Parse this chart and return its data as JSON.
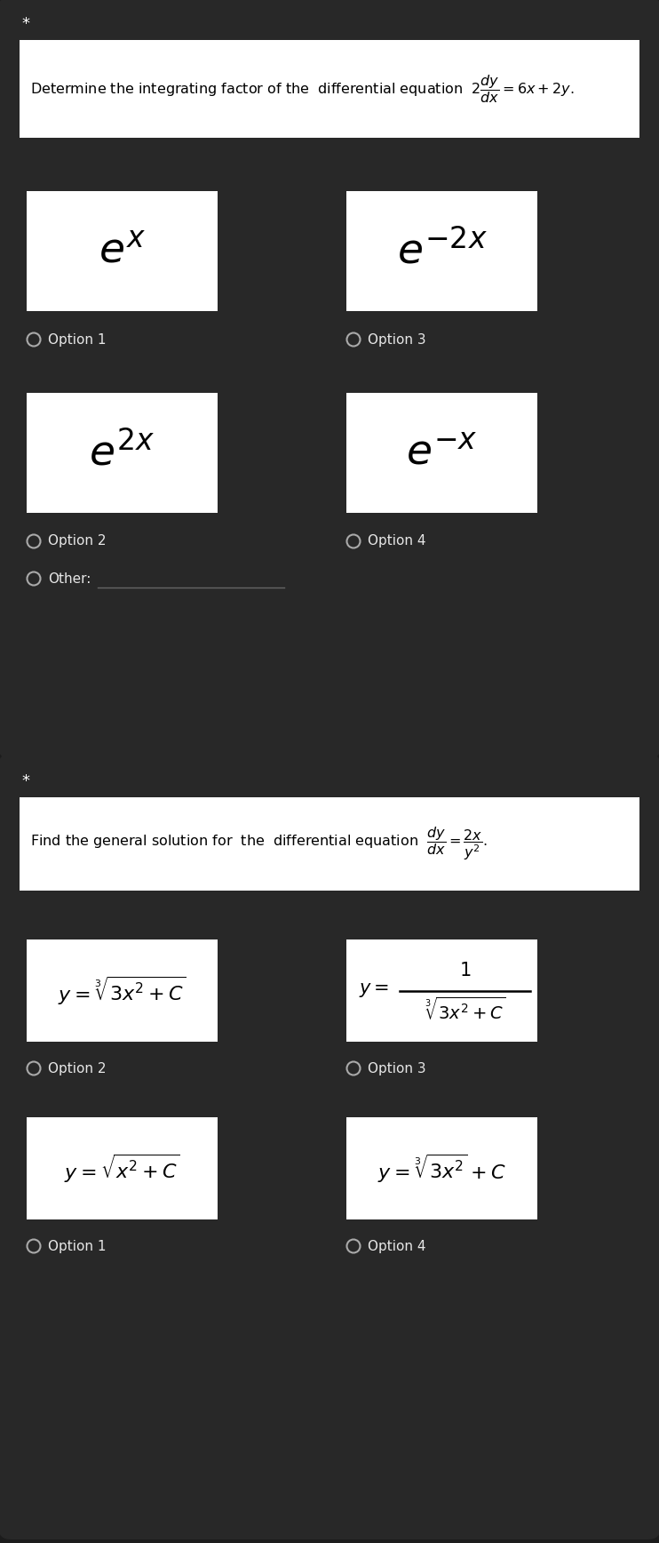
{
  "bg_color": "#1c1c1c",
  "card_bg": "#ffffff",
  "dark_section_bg": "#282828",
  "text_color_white": "#e8e8e8",
  "text_color_black": "#000000",
  "star_color": "#ffffff",
  "circle_color": "#aaaaaa",
  "line_color": "#666666",
  "q1_question": "Determine the integrating factor of the  differential equation  $2\\dfrac{dy}{dx}=6x+2y$.",
  "q1_opt1": "$e^{x}$",
  "q1_opt2": "$e^{2x}$",
  "q1_opt3": "$e^{-2x}$",
  "q1_opt4": "$e^{-x}$",
  "q2_question": "Find the general solution for  the  differential equation  $\\dfrac{dy}{dx}=\\dfrac{2x}{y^{2}}$.",
  "q2_opt2": "$y=\\sqrt[3]{3x^2+C}$",
  "q2_opt1": "$y=\\sqrt{x^2+C}$",
  "q2_opt4": "$y=\\sqrt[3]{3x^2}+C$"
}
